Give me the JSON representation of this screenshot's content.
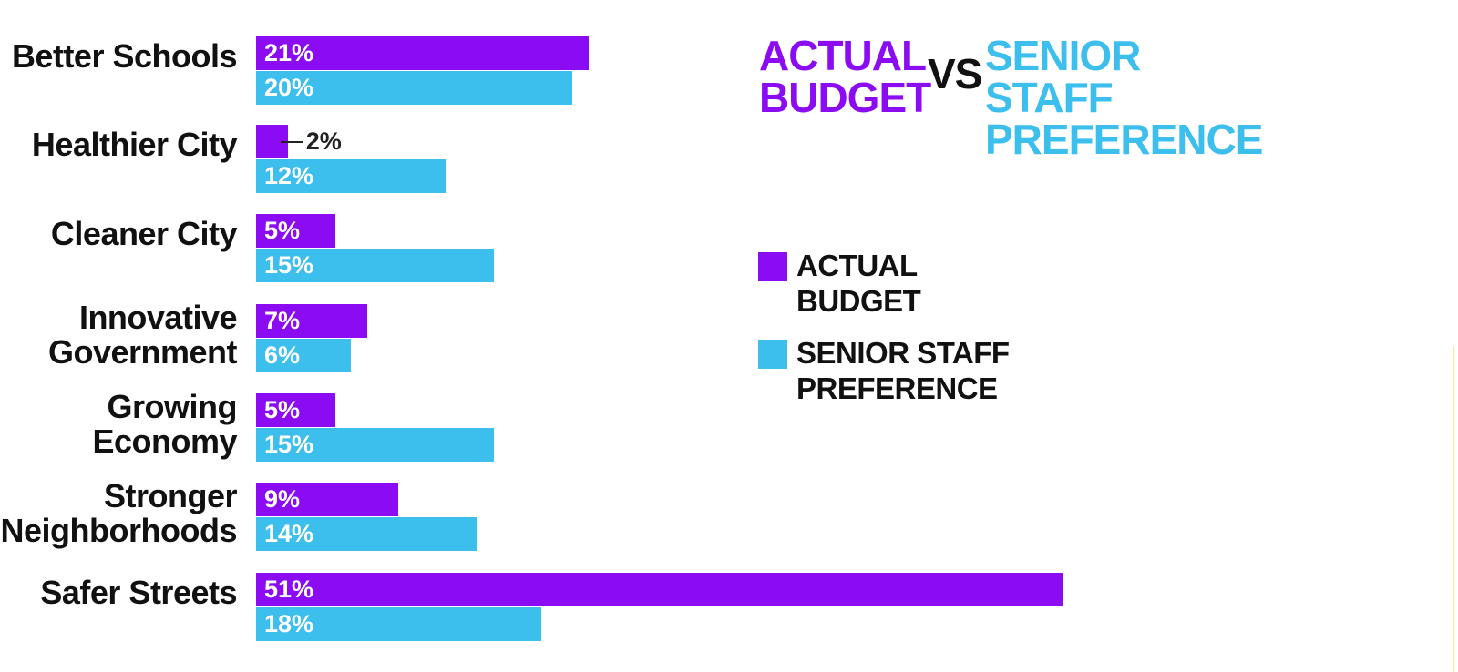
{
  "colors": {
    "actual": "#8b0cf2",
    "senior": "#3dbfed"
  },
  "title": {
    "actual": "ACTUAL BUDGET",
    "vs": "VS",
    "senior": "SENIOR STAFF PREFERENCE"
  },
  "legend": [
    {
      "label": "ACTUAL BUDGET",
      "color": "#8b0cf2"
    },
    {
      "label": "SENIOR STAFF PREFERENCE",
      "color": "#3dbfed"
    }
  ],
  "chart_data": {
    "type": "bar",
    "orientation": "horizontal",
    "title": "ACTUAL BUDGET VS SENIOR STAFF PREFERENCE",
    "categories": [
      "Better Schools",
      "Healthier City",
      "Cleaner City",
      "Innovative Government",
      "Growing Economy",
      "Stronger Neighborhoods",
      "Safer Streets"
    ],
    "series": [
      {
        "name": "ACTUAL BUDGET",
        "values": [
          21,
          2,
          5,
          7,
          5,
          9,
          51
        ],
        "labels": [
          "21%",
          "2%",
          "5%",
          "7%",
          "5%",
          "9%",
          "51%"
        ]
      },
      {
        "name": "SENIOR STAFF PREFERENCE",
        "values": [
          20,
          12,
          15,
          6,
          15,
          14,
          18
        ],
        "labels": [
          "20%",
          "12%",
          "15%",
          "6%",
          "15%",
          "14%",
          "18%"
        ]
      }
    ],
    "unit": "%",
    "xlim": [
      0,
      51
    ],
    "grid": false,
    "legend_position": "right"
  }
}
